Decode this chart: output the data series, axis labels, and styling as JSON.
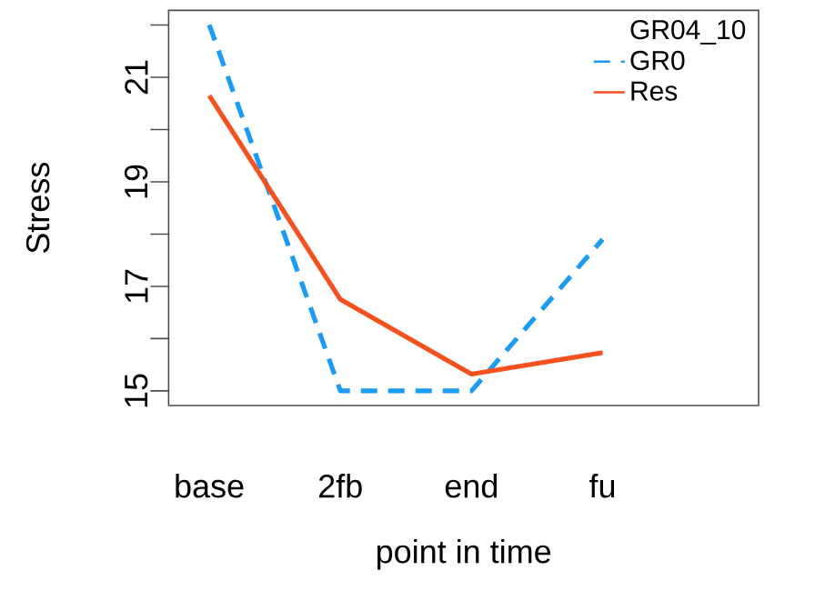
{
  "chart_data": {
    "type": "line",
    "xlabel": "point in time",
    "ylabel": "Stress",
    "legend_title": "GR04_10",
    "categories": [
      "base",
      "2fb",
      "end",
      "fu"
    ],
    "series": [
      {
        "name": "GR0",
        "color": "#1a9cf5",
        "line_style": "dashed",
        "values": [
          22,
          15,
          15,
          17.9
        ]
      },
      {
        "name": "Res",
        "color": "#f4511e",
        "line_style": "solid",
        "values": [
          20.65,
          16.75,
          15.32,
          15.73
        ]
      }
    ],
    "ylim": [
      14.72,
      22.28
    ],
    "yticks": [
      15,
      {
        "value": 16,
        "label": null
      },
      17,
      {
        "value": 18,
        "label": null
      },
      19,
      {
        "value": 20,
        "label": null
      },
      21,
      {
        "value": 22,
        "label": null
      }
    ],
    "legend": "top right"
  }
}
